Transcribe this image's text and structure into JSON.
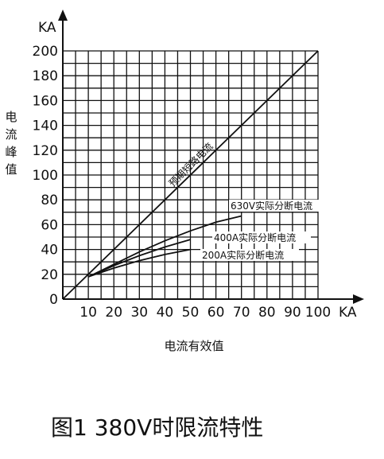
{
  "chart_data": {
    "type": "line",
    "caption": "图1 380V时限流特性",
    "xlabel": "电流有效值",
    "ylabel": "电流峰值",
    "x_unit": "KA",
    "y_unit": "KA",
    "xlim": [
      0,
      100
    ],
    "ylim": [
      0,
      200
    ],
    "x_ticks": [
      10,
      20,
      30,
      40,
      50,
      60,
      70,
      80,
      90,
      100
    ],
    "y_ticks": [
      0,
      20,
      40,
      60,
      80,
      100,
      120,
      140,
      160,
      180,
      200
    ],
    "grid": true,
    "x_grid_step": 5,
    "y_grid_step": 10,
    "series": [
      {
        "name": "预期短路电流",
        "x": [
          0,
          100
        ],
        "y": [
          0,
          200
        ]
      },
      {
        "name": "630V实际分断电流",
        "x": [
          10,
          20,
          30,
          40,
          50,
          60,
          70
        ],
        "y": [
          18,
          28,
          38,
          47,
          55,
          62,
          67
        ]
      },
      {
        "name": "400A实际分断电流",
        "x": [
          10,
          20,
          30,
          40,
          50
        ],
        "y": [
          18,
          27,
          35,
          42,
          48
        ]
      },
      {
        "name": "200A实际分断电流",
        "x": [
          10,
          20,
          30,
          40,
          50
        ],
        "y": [
          18,
          25,
          31,
          36,
          40
        ]
      }
    ]
  }
}
